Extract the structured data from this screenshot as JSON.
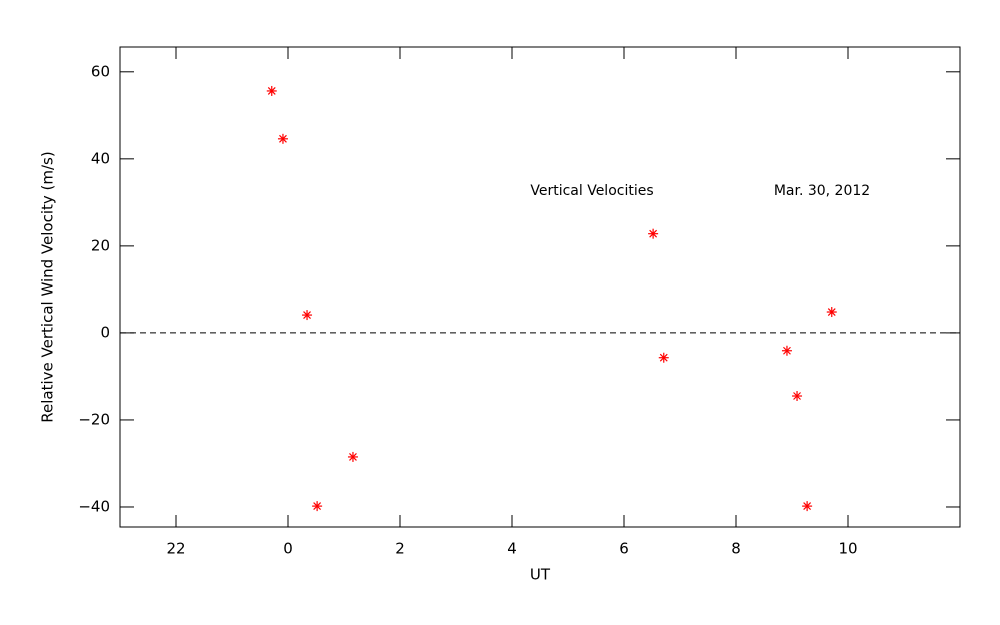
{
  "chart_data": {
    "type": "scatter",
    "xlabel": "UT",
    "ylabel": "Relative Vertical Wind Velocity (m/s)",
    "annotations": [
      "Vertical Velocities",
      "Mar. 30, 2012"
    ],
    "x": [
      -0.29,
      -0.09,
      0.34,
      0.52,
      1.16,
      6.52,
      6.71,
      8.91,
      9.09,
      9.27,
      9.71
    ],
    "series": [
      {
        "name": null,
        "color": "#ff0000",
        "values": [
          55.6,
          44.6,
          4.1,
          -39.8,
          -28.5,
          22.8,
          -5.7,
          -4.1,
          -14.5,
          -39.8,
          4.8
        ]
      }
    ],
    "xlim": [
      -3,
      12
    ],
    "ylim": [
      -44.6,
      65.7
    ],
    "xticks": [
      {
        "value": -2,
        "label": "22"
      },
      0,
      2,
      4,
      6,
      8,
      10
    ],
    "yticks": [
      {
        "value": -40,
        "label": "−40"
      },
      {
        "value": -20,
        "label": "−20"
      },
      0,
      20,
      40,
      60
    ],
    "hline": 0,
    "grid": false
  }
}
